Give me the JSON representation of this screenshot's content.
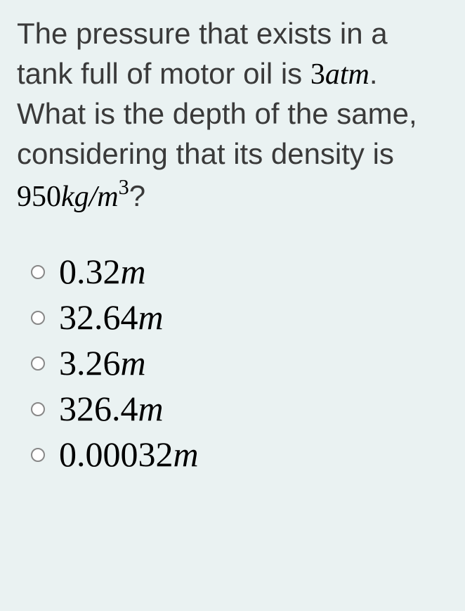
{
  "question": {
    "part1": "The pressure that exists in a tank full of motor oil is ",
    "pressure_value": "3",
    "pressure_unit": "atm",
    "part2": ". What is the depth of the same, considering that its density is ",
    "density_value": "950",
    "density_unit_base": "kg/m",
    "density_unit_exp": "3",
    "part3": "?"
  },
  "options": [
    {
      "value": "0.32",
      "unit": "m"
    },
    {
      "value": "32.64",
      "unit": "m"
    },
    {
      "value": "3.26",
      "unit": "m"
    },
    {
      "value": "326.4",
      "unit": "m"
    },
    {
      "value": "0.00032",
      "unit": "m"
    }
  ],
  "styles": {
    "background_color": "#eaf2f2",
    "question_fontsize": 42,
    "question_color": "#3a3a3a",
    "math_color": "#000000",
    "option_fontsize": 50,
    "option_color": "#000000",
    "radio_border_color": "#888888",
    "radio_size": 20
  }
}
